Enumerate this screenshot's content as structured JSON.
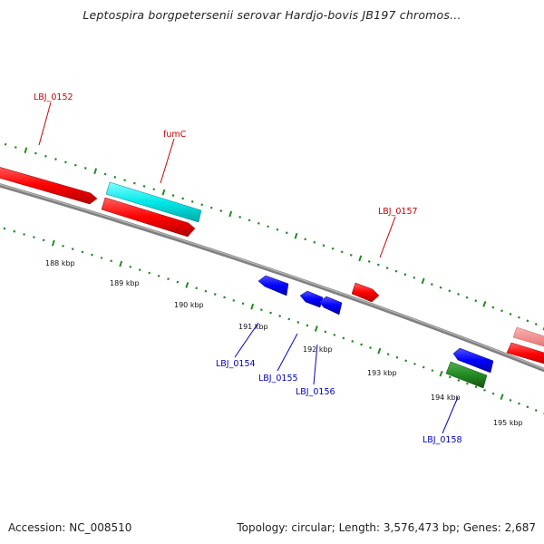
{
  "title": "Leptospira borgpetersenii serovar Hardjo-bovis JB197 chromos...",
  "footer": {
    "accession": "Accession: NC_008510",
    "summary": "Topology: circular; Length: 3,576,473 bp; Genes: 2,687"
  },
  "colors": {
    "forward_gene": "#ff0000",
    "forward_gene_light": "#f08080",
    "reverse_gene": "#0000ff",
    "rna_gene": "#00e0e0",
    "other_gene": "#228b22",
    "backbone": "#808080",
    "tick": "#228b22",
    "forward_label": "#cc0000",
    "reverse_label": "#0000cc"
  },
  "kbp_ticks": [
    "188 kbp",
    "189 kbp",
    "190 kbp",
    "191 kbp",
    "192 kbp",
    "193 kbp",
    "194 kbp",
    "195 kbp"
  ],
  "gene_labels": {
    "lbj_0152": "LBJ_0152",
    "fumc": "fumC",
    "lbj_0157": "LBJ_0157",
    "lbj_0154": "LBJ_0154",
    "lbj_0155": "LBJ_0155",
    "lbj_0156": "LBJ_0156",
    "lbj_0158": "LBJ_0158"
  }
}
